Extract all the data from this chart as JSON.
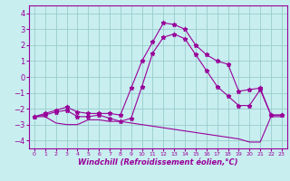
{
  "xlabel": "Windchill (Refroidissement éolien,°C)",
  "x": [
    0,
    1,
    2,
    3,
    4,
    5,
    6,
    7,
    8,
    9,
    10,
    11,
    12,
    13,
    14,
    15,
    16,
    17,
    18,
    19,
    20,
    21,
    22,
    23
  ],
  "line_upper": [
    -2.5,
    -2.3,
    -2.1,
    -1.9,
    -2.2,
    -2.3,
    -2.3,
    -2.3,
    -2.4,
    -0.7,
    1.0,
    2.2,
    3.4,
    3.3,
    3.0,
    2.0,
    1.4,
    1.0,
    0.8,
    -0.9,
    -0.8,
    -0.7,
    -2.4,
    -2.4
  ],
  "line_mid": [
    -2.5,
    -2.4,
    -2.2,
    -2.1,
    -2.5,
    -2.5,
    -2.4,
    -2.6,
    -2.8,
    -2.6,
    -0.6,
    1.5,
    2.5,
    2.7,
    2.4,
    1.4,
    0.4,
    -0.6,
    -1.2,
    -1.8,
    -1.8,
    -0.8,
    -2.4,
    -2.4
  ],
  "line_lower": [
    -2.5,
    -2.5,
    -2.9,
    -3.0,
    -3.0,
    -2.7,
    -2.7,
    -2.8,
    -2.8,
    -2.9,
    -3.0,
    -3.1,
    -3.2,
    -3.3,
    -3.4,
    -3.5,
    -3.6,
    -3.7,
    -3.8,
    -3.9,
    -4.1,
    -4.1,
    -2.5,
    -2.5
  ],
  "bg_color": "#c8eef0",
  "grid_color": "#99cccc",
  "line_color": "#990099",
  "ylim": [
    -4.5,
    4.5
  ],
  "yticks": [
    -4,
    -3,
    -2,
    -1,
    0,
    1,
    2,
    3,
    4
  ],
  "xticks": [
    0,
    1,
    2,
    3,
    4,
    5,
    6,
    7,
    8,
    9,
    10,
    11,
    12,
    13,
    14,
    15,
    16,
    17,
    18,
    19,
    20,
    21,
    22,
    23
  ],
  "xlim": [
    -0.5,
    23.5
  ]
}
